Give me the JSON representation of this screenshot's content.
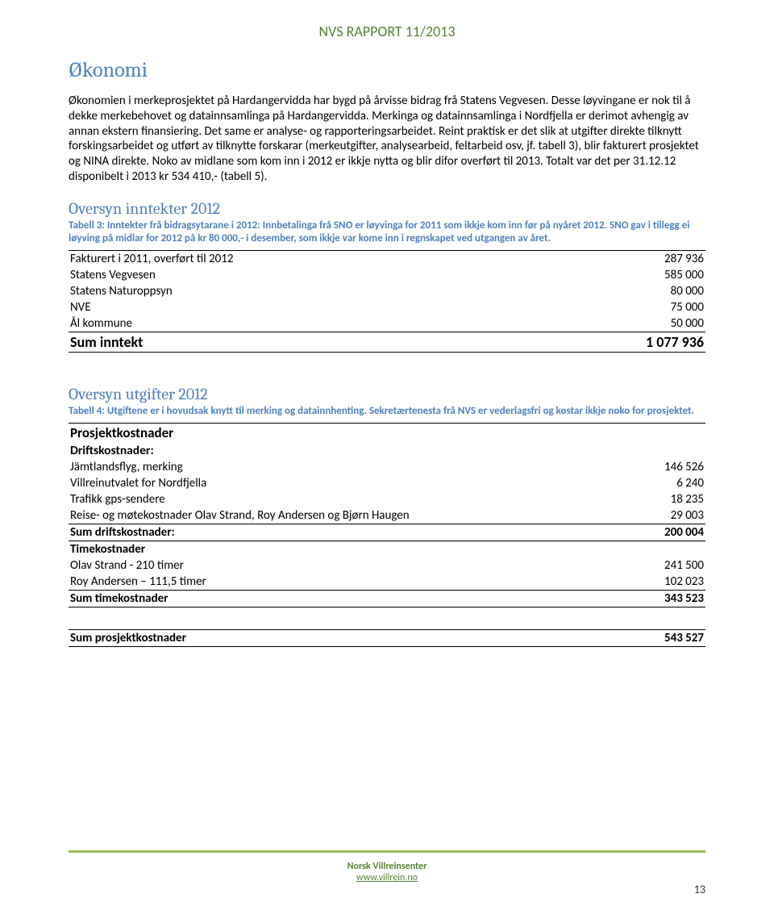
{
  "header": {
    "report_id": "NVS RAPPORT 11/2013"
  },
  "h1": "Økonomi",
  "para1": "Økonomien i merkeprosjektet på Hardangervidda har bygd på årvisse bidrag frå Statens Vegvesen. Desse løyvingane er nok til å dekke merkebehovet og datainnsamlinga på Hardangervidda. Merkinga og datainnsamlinga i Nordfjella er derimot avhengig av annan ekstern finansiering. Det same er analyse- og rapporteringsarbeidet. Reint praktisk er det slik at utgifter direkte tilknytt forskingsarbeidet og utført av tilknytte forskarar (merkeutgifter, analysearbeid, feltarbeid osv, jf. tabell 3), blir fakturert prosjektet og NINA direkte. Noko av midlane som kom inn i 2012 er ikkje nytta og blir difor overført til 2013. Totalt var det per 31.12.12 disponibelt i 2013 kr 534 410,- (tabell 5).",
  "section_inntekter": {
    "title": "Oversyn inntekter 2012",
    "caption": "Tabell 3: Inntekter frå bidragsytarane i 2012: Innbetalinga frå SNO er løyvinga for 2011 som ikkje kom inn før på nyåret 2012. SNO gav i tillegg ei løyving på midlar for 2012 på kr 80 000,- i desember, som ikkje var kome inn i regnskapet ved utgangen av året.",
    "rows": [
      {
        "label": "Fakturert i 2011, overført til 2012",
        "value": "287 936"
      },
      {
        "label": "Statens Vegvesen",
        "value": "585 000"
      },
      {
        "label": "Statens Naturoppsyn",
        "value": "80 000"
      },
      {
        "label": "NVE",
        "value": "75 000"
      },
      {
        "label": "Ål kommune",
        "value": "50 000"
      }
    ],
    "sum": {
      "label": "Sum inntekt",
      "value": "1 077 936"
    }
  },
  "section_utgifter": {
    "title": "Oversyn utgifter 2012",
    "caption": "Tabell 4: Utgiftene er i hovudsak knytt til merking og datainnhenting. Sekretærtenesta frå NVS er vederlagsfri og kostar ikkje noko for prosjektet.",
    "header1": "Prosjektkostnader",
    "drift_header": "Driftskostnader:",
    "drift_rows": [
      {
        "label": "Jämtlandsflyg, merking",
        "value": "146 526"
      },
      {
        "label": "Villreinutvalet for Nordfjella",
        "value": "6 240"
      },
      {
        "label": "Trafikk gps-sendere",
        "value": "18 235"
      },
      {
        "label": "Reise- og møtekostnader Olav Strand, Roy Andersen og Bjørn Haugen",
        "value": "29 003"
      }
    ],
    "drift_sum": {
      "label": "Sum driftskostnader:",
      "value": "200 004"
    },
    "time_header": "Timekostnader",
    "time_rows": [
      {
        "label": "Olav Strand - 210 timer",
        "value": "241 500"
      },
      {
        "label": "Roy Andersen – 111,5 timer",
        "value": "102 023"
      }
    ],
    "time_sum": {
      "label": "Sum timekostnader",
      "value": "343 523"
    },
    "grand_sum": {
      "label": "Sum prosjektkostnader",
      "value": "543 527"
    }
  },
  "footer": {
    "org": "Norsk Villreinsenter",
    "link": "www.villrein.no",
    "page": "13"
  },
  "colors": {
    "green": "#548235",
    "blue": "#4f81bd",
    "rule": "#9bbb59"
  }
}
